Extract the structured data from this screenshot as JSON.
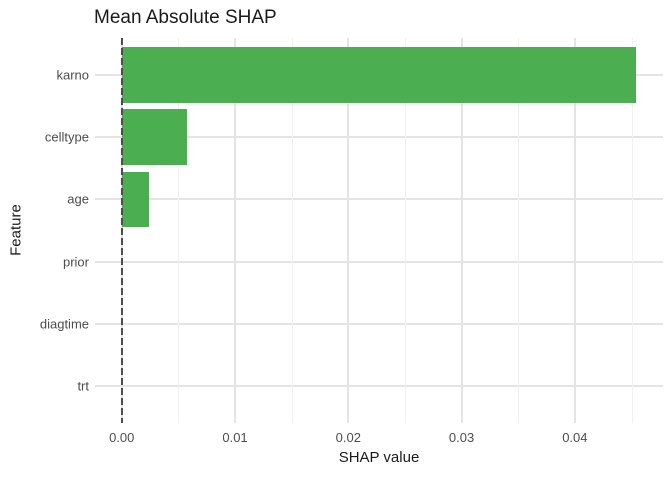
{
  "chart_data": {
    "type": "bar",
    "orientation": "horizontal",
    "title": "Mean Absolute SHAP",
    "xlabel": "SHAP value",
    "ylabel": "Feature",
    "categories": [
      "karno",
      "celltype",
      "age",
      "prior",
      "diagtime",
      "trt"
    ],
    "values": [
      0.0454,
      0.0058,
      0.0024,
      0,
      0,
      0
    ],
    "xlim": [
      -0.00236,
      0.04778
    ],
    "x_ticks": [
      {
        "value": 0.0,
        "label": "0.00"
      },
      {
        "value": 0.01,
        "label": "0.01"
      },
      {
        "value": 0.02,
        "label": "0.02"
      },
      {
        "value": 0.03,
        "label": "0.03"
      },
      {
        "value": 0.04,
        "label": "0.04"
      }
    ],
    "x_minor_ticks": [
      0.005,
      0.015,
      0.025,
      0.035,
      0.045
    ],
    "zero_line": {
      "value": 0,
      "style": "dashed",
      "color": "#4D4D4D"
    },
    "grid": "on",
    "legend": "none",
    "colors": {
      "bar": "#4BAE50",
      "grid_major": "#E4E4E4",
      "grid_minor": "#F1F1F1",
      "tick_text": "#4D4D4D",
      "axis_title_text": "#1A1A1A",
      "title_text": "#1A1A1A",
      "background": "#FFFFFF"
    }
  }
}
